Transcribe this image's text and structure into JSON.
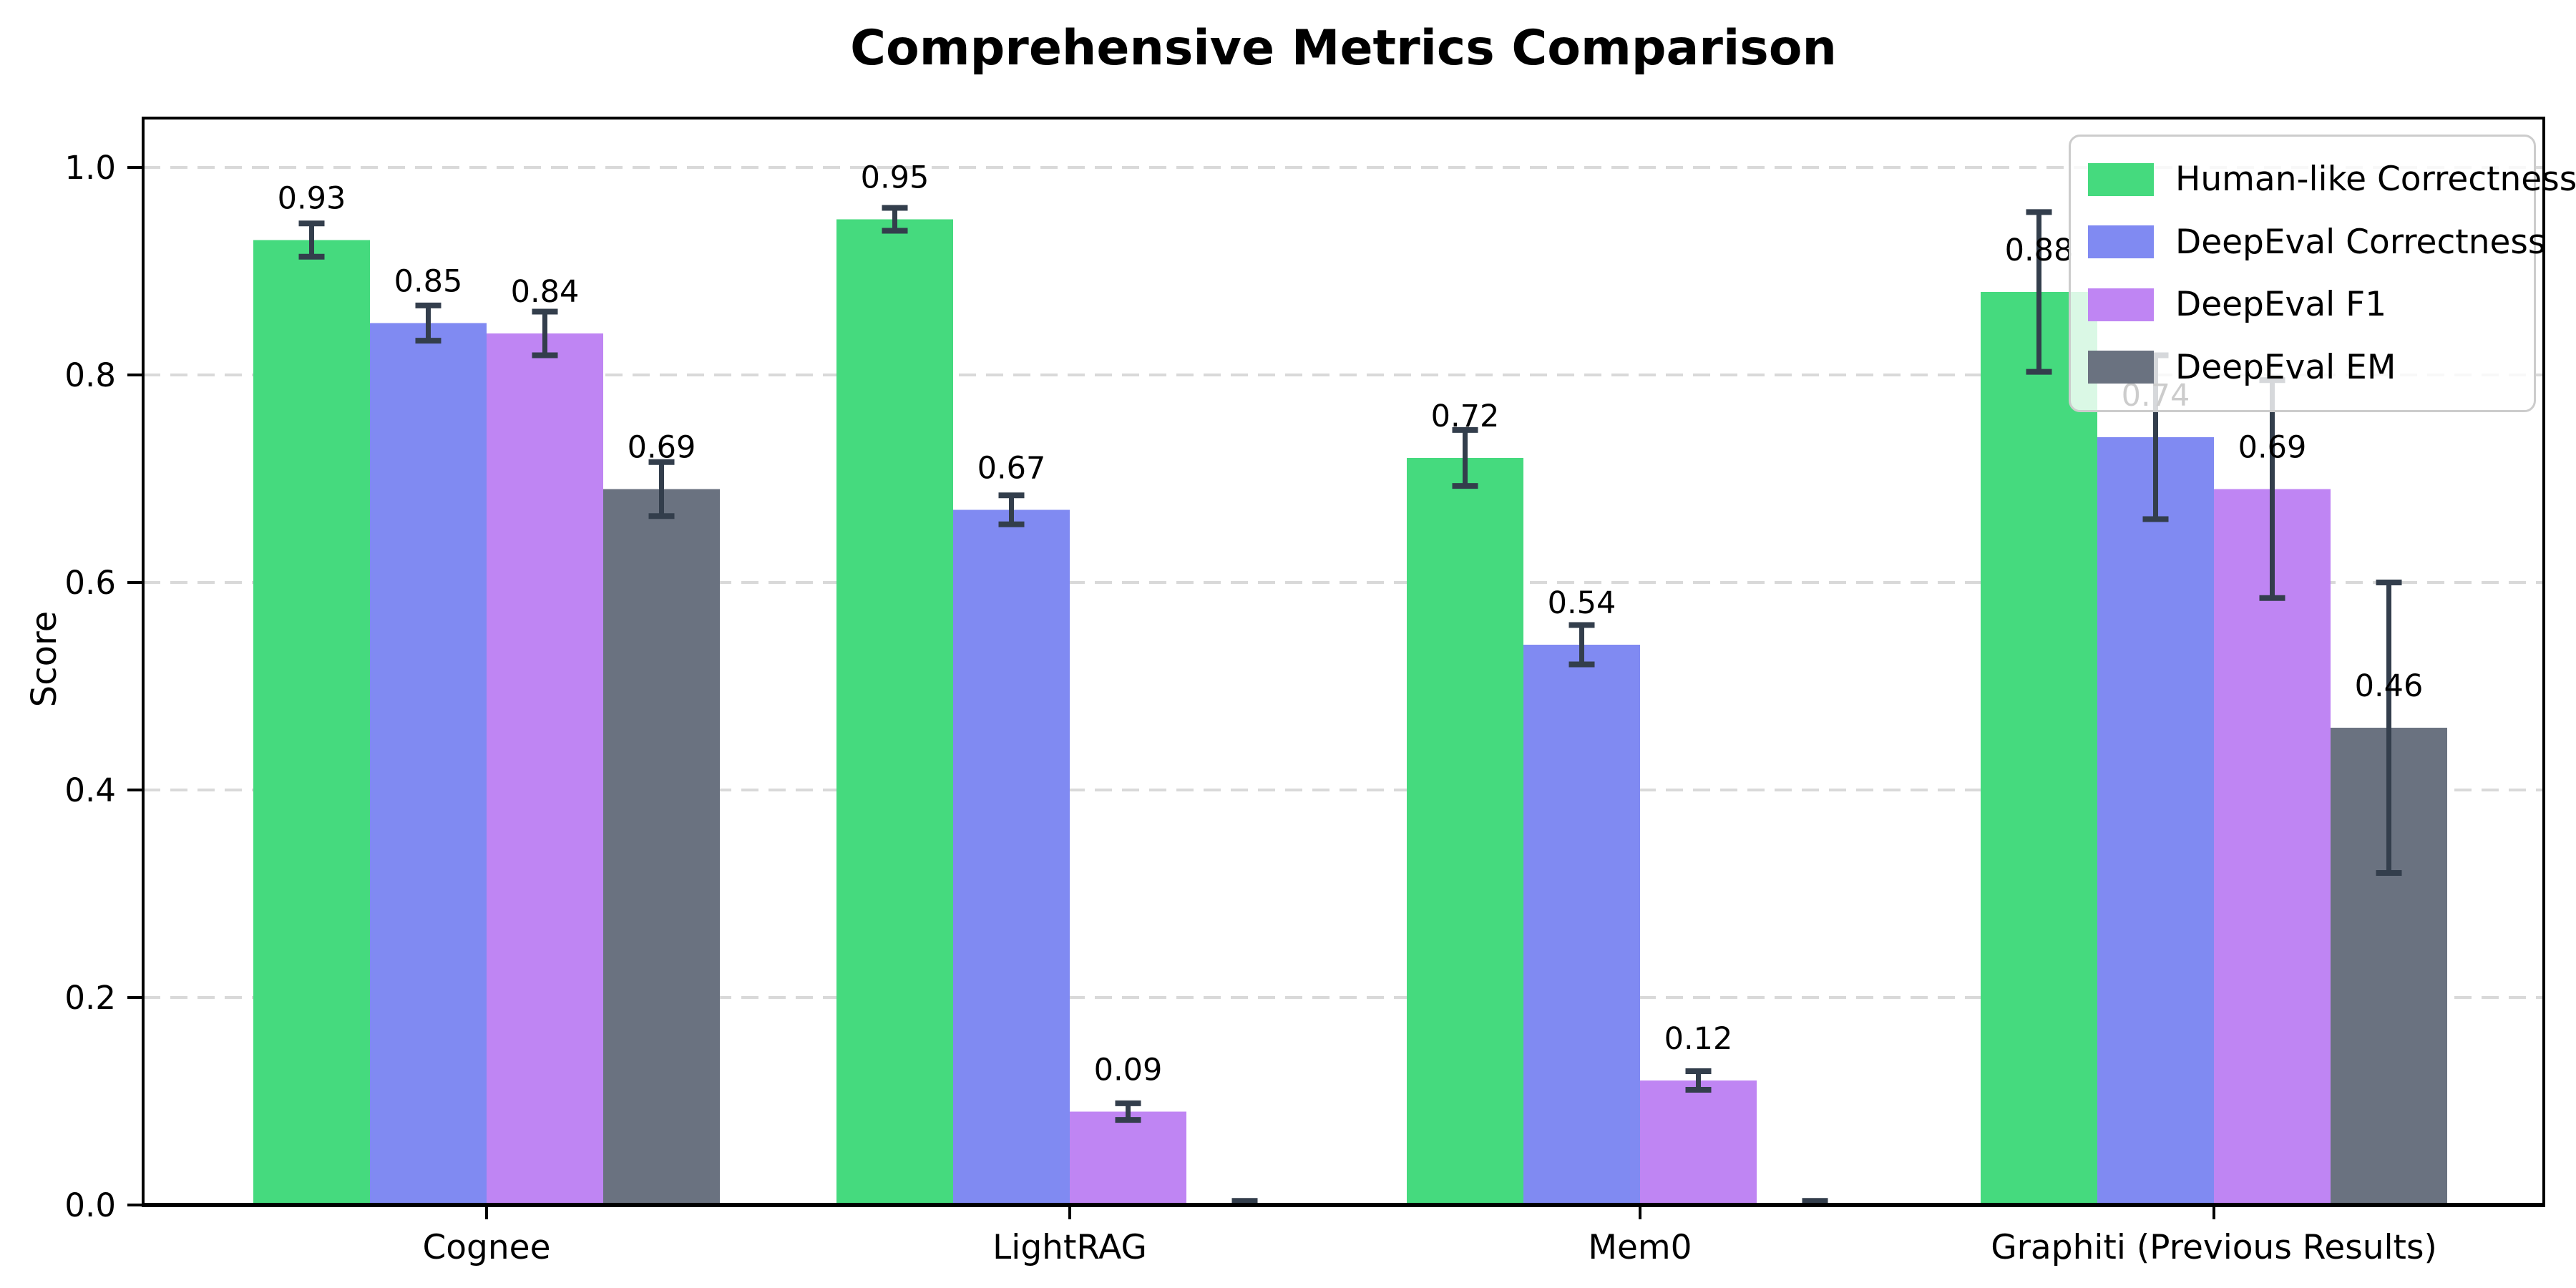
{
  "chart_data": {
    "type": "bar",
    "title": "Comprehensive Metrics Comparison",
    "ylabel": "Score",
    "xlabel": "",
    "categories": [
      "Cognee",
      "LightRAG",
      "Mem0",
      "Graphiti (Previous Results)"
    ],
    "series": [
      {
        "name": "Human-like Correctness",
        "color": "#45da7e",
        "values": [
          0.93,
          0.95,
          0.72,
          0.88
        ],
        "errors": [
          0.016,
          0.011,
          0.027,
          0.077
        ],
        "labels": [
          "0.93",
          "0.95",
          "0.72",
          "0.88"
        ]
      },
      {
        "name": "DeepEval Correctness",
        "color": "#808af2",
        "values": [
          0.85,
          0.67,
          0.54,
          0.74
        ],
        "errors": [
          0.017,
          0.014,
          0.019,
          0.079
        ],
        "labels": [
          "0.85",
          "0.67",
          "0.54",
          "0.74"
        ]
      },
      {
        "name": "DeepEval F1",
        "color": "#bf85f3",
        "values": [
          0.84,
          0.09,
          0.12,
          0.69
        ],
        "errors": [
          0.021,
          0.008,
          0.009,
          0.105
        ],
        "labels": [
          "0.84",
          "0.09",
          "0.12",
          "0.69"
        ]
      },
      {
        "name": "DeepEval EM",
        "color": "#6a7280",
        "values": [
          0.69,
          0.0,
          0.0,
          0.46
        ],
        "errors": [
          0.026,
          0.004,
          0.004,
          0.14
        ],
        "labels": [
          "0.69",
          null,
          null,
          "0.46"
        ]
      }
    ],
    "ylim": [
      0.0,
      1.035
    ],
    "yticks": [
      "0.0",
      "0.2",
      "0.4",
      "0.6",
      "0.8",
      "1.0"
    ],
    "ytick_values": [
      0.0,
      0.2,
      0.4,
      0.6,
      0.8,
      1.0
    ],
    "grid": "horizontal-dashed",
    "legend_position": "upper-right",
    "error_bar_color": "#333e4c",
    "grid_color": "#d9d9d9",
    "axis_color": "#000000",
    "text_color": "#000000"
  }
}
